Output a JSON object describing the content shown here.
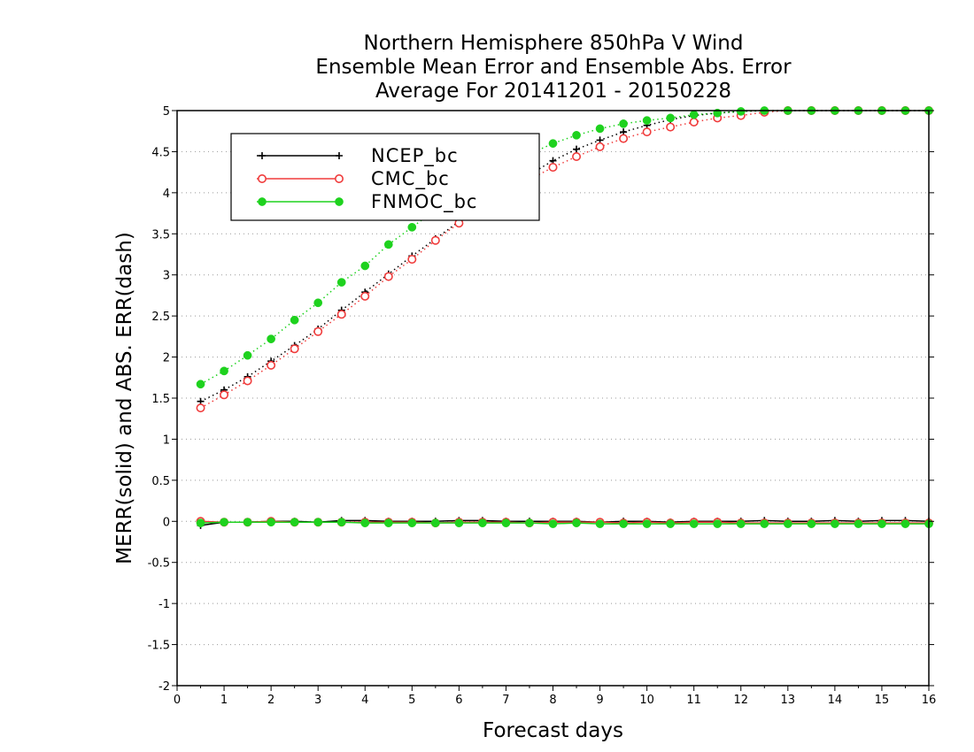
{
  "chart_data": {
    "type": "line",
    "title": [
      "Northern Hemisphere 850hPa V Wind",
      "Ensemble Mean Error and Ensemble Abs. Error",
      "Average For 20141201 - 20150228"
    ],
    "xlabel": "Forecast days",
    "ylabel": "MERR(solid) and ABS. ERR(dash)",
    "xlim": [
      0,
      16
    ],
    "ylim": [
      -2,
      5
    ],
    "xticks": [
      "0",
      "1",
      "2",
      "3",
      "4",
      "5",
      "6",
      "7",
      "8",
      "9",
      "10",
      "11",
      "12",
      "13",
      "14",
      "15",
      "16"
    ],
    "yticks": [
      "-2",
      "-1.5",
      "-1",
      "-0.5",
      "0",
      "0.5",
      "1",
      "1.5",
      "2",
      "2.5",
      "3",
      "3.5",
      "4",
      "4.5",
      "5"
    ],
    "grid": "horizontal dotted",
    "legend_position": "top-left",
    "x": [
      0.5,
      1,
      1.5,
      2,
      2.5,
      3,
      3.5,
      4,
      4.5,
      5,
      5.5,
      6,
      6.5,
      7,
      7.5,
      8,
      8.5,
      9,
      9.5,
      10,
      10.5,
      11,
      11.5,
      12,
      12.5,
      13,
      13.5,
      14,
      14.5,
      15,
      15.5,
      16
    ],
    "series": [
      {
        "name": "NCEP_bc",
        "color": "#000000",
        "marker": "plus",
        "mean_error": [
          -0.05,
          -0.01,
          -0.01,
          0,
          0,
          -0.01,
          0.01,
          0.01,
          0,
          0,
          0,
          0.01,
          0.01,
          0,
          0,
          0,
          0,
          -0.01,
          0,
          0,
          -0.01,
          0,
          0,
          0,
          0.01,
          0,
          0,
          0.01,
          0,
          0.01,
          0.01,
          0
        ],
        "abs_error": [
          1.46,
          1.6,
          1.76,
          1.95,
          2.14,
          2.34,
          2.57,
          2.79,
          3.01,
          3.23,
          3.44,
          3.65,
          3.86,
          4.05,
          4.22,
          4.39,
          4.53,
          4.64,
          4.74,
          4.82,
          4.89,
          4.94,
          4.97,
          4.99,
          5.0,
          5.0,
          5.0,
          5.0,
          5.0,
          5.0,
          5.0,
          5.0
        ]
      },
      {
        "name": "CMC_bc",
        "color": "#f03c3c",
        "marker": "open-circle",
        "mean_error": [
          0,
          -0.01,
          -0.01,
          0,
          -0.01,
          -0.01,
          -0.01,
          -0.01,
          -0.01,
          -0.01,
          -0.02,
          -0.01,
          -0.01,
          -0.01,
          -0.02,
          -0.01,
          -0.01,
          -0.01,
          -0.02,
          -0.01,
          -0.02,
          -0.01,
          -0.01,
          -0.02,
          -0.02,
          -0.02,
          -0.02,
          -0.02,
          -0.02,
          -0.02,
          -0.02,
          -0.02
        ],
        "abs_error": [
          1.38,
          1.54,
          1.71,
          1.9,
          2.1,
          2.31,
          2.52,
          2.74,
          2.98,
          3.19,
          3.42,
          3.63,
          3.83,
          4.0,
          4.16,
          4.31,
          4.44,
          4.56,
          4.66,
          4.74,
          4.8,
          4.86,
          4.91,
          4.94,
          4.98,
          5.0,
          5.0,
          5.0,
          5.0,
          5.0,
          5.0,
          5.0
        ]
      },
      {
        "name": "FNMOC_bc",
        "color": "#1ed21e",
        "marker": "filled-circle",
        "mean_error": [
          -0.02,
          -0.01,
          -0.01,
          -0.01,
          -0.01,
          -0.01,
          -0.01,
          -0.02,
          -0.02,
          -0.02,
          -0.02,
          -0.02,
          -0.02,
          -0.02,
          -0.02,
          -0.03,
          -0.02,
          -0.03,
          -0.03,
          -0.03,
          -0.03,
          -0.03,
          -0.03,
          -0.03,
          -0.03,
          -0.03,
          -0.03,
          -0.03,
          -0.03,
          -0.03,
          -0.03,
          -0.03
        ],
        "abs_error": [
          1.67,
          1.83,
          2.02,
          2.22,
          2.45,
          2.66,
          2.91,
          3.11,
          3.37,
          3.58,
          3.79,
          3.98,
          4.16,
          4.33,
          4.47,
          4.6,
          4.7,
          4.78,
          4.84,
          4.88,
          4.91,
          4.95,
          4.97,
          4.99,
          5.0,
          5.0,
          5.0,
          5.0,
          5.0,
          5.0,
          5.0,
          5.0
        ]
      }
    ]
  }
}
